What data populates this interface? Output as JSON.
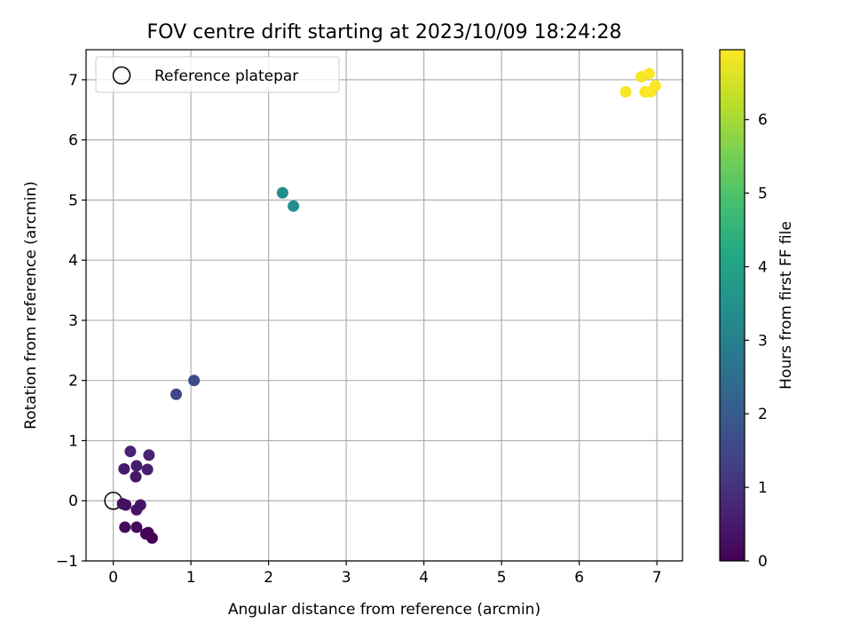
{
  "chart_data": {
    "type": "scatter",
    "title": "FOV centre drift starting at 2023/10/09 18:24:28",
    "xlabel": "Angular distance from reference (arcmin)",
    "ylabel": "Rotation from reference (arcmin)",
    "xlim": [
      -0.35,
      7.33
    ],
    "ylim": [
      -1.0,
      7.5
    ],
    "xticks": [
      0,
      1,
      2,
      3,
      4,
      5,
      6,
      7
    ],
    "yticks": [
      -1,
      0,
      1,
      2,
      3,
      4,
      5,
      6,
      7
    ],
    "grid": true,
    "legend": {
      "placement": "upper-left",
      "entries": [
        "Reference platepar"
      ]
    },
    "reference_point": {
      "label": "Reference platepar",
      "x": 0,
      "y": 0
    },
    "colorbar": {
      "label": "Hours from first FF file",
      "colormap": "viridis",
      "range": [
        0,
        6.95
      ],
      "ticks": [
        0,
        1,
        2,
        3,
        4,
        5,
        6
      ]
    },
    "points": [
      {
        "x": 0.5,
        "y": -0.62,
        "t": 0.0
      },
      {
        "x": 0.45,
        "y": -0.53,
        "t": 0.05
      },
      {
        "x": 0.42,
        "y": -0.55,
        "t": 0.1
      },
      {
        "x": 0.3,
        "y": -0.44,
        "t": 0.15
      },
      {
        "x": 0.15,
        "y": -0.44,
        "t": 0.2
      },
      {
        "x": 0.12,
        "y": -0.05,
        "t": 0.25
      },
      {
        "x": 0.16,
        "y": -0.07,
        "t": 0.3
      },
      {
        "x": 0.3,
        "y": -0.15,
        "t": 0.35
      },
      {
        "x": 0.35,
        "y": -0.07,
        "t": 0.4
      },
      {
        "x": 0.29,
        "y": 0.4,
        "t": 0.45
      },
      {
        "x": 0.14,
        "y": 0.53,
        "t": 0.5
      },
      {
        "x": 0.3,
        "y": 0.58,
        "t": 0.55
      },
      {
        "x": 0.44,
        "y": 0.52,
        "t": 0.6
      },
      {
        "x": 0.46,
        "y": 0.76,
        "t": 0.65
      },
      {
        "x": 0.22,
        "y": 0.82,
        "t": 0.7
      },
      {
        "x": 0.81,
        "y": 1.77,
        "t": 1.5
      },
      {
        "x": 1.04,
        "y": 2.0,
        "t": 1.6
      },
      {
        "x": 2.18,
        "y": 5.12,
        "t": 3.35
      },
      {
        "x": 2.32,
        "y": 4.9,
        "t": 3.4
      },
      {
        "x": 6.6,
        "y": 6.8,
        "t": 6.88
      },
      {
        "x": 6.8,
        "y": 7.05,
        "t": 6.9
      },
      {
        "x": 6.85,
        "y": 6.8,
        "t": 6.9
      },
      {
        "x": 6.9,
        "y": 7.1,
        "t": 6.92
      },
      {
        "x": 6.92,
        "y": 6.8,
        "t": 6.93
      },
      {
        "x": 6.98,
        "y": 6.9,
        "t": 6.95
      }
    ]
  }
}
